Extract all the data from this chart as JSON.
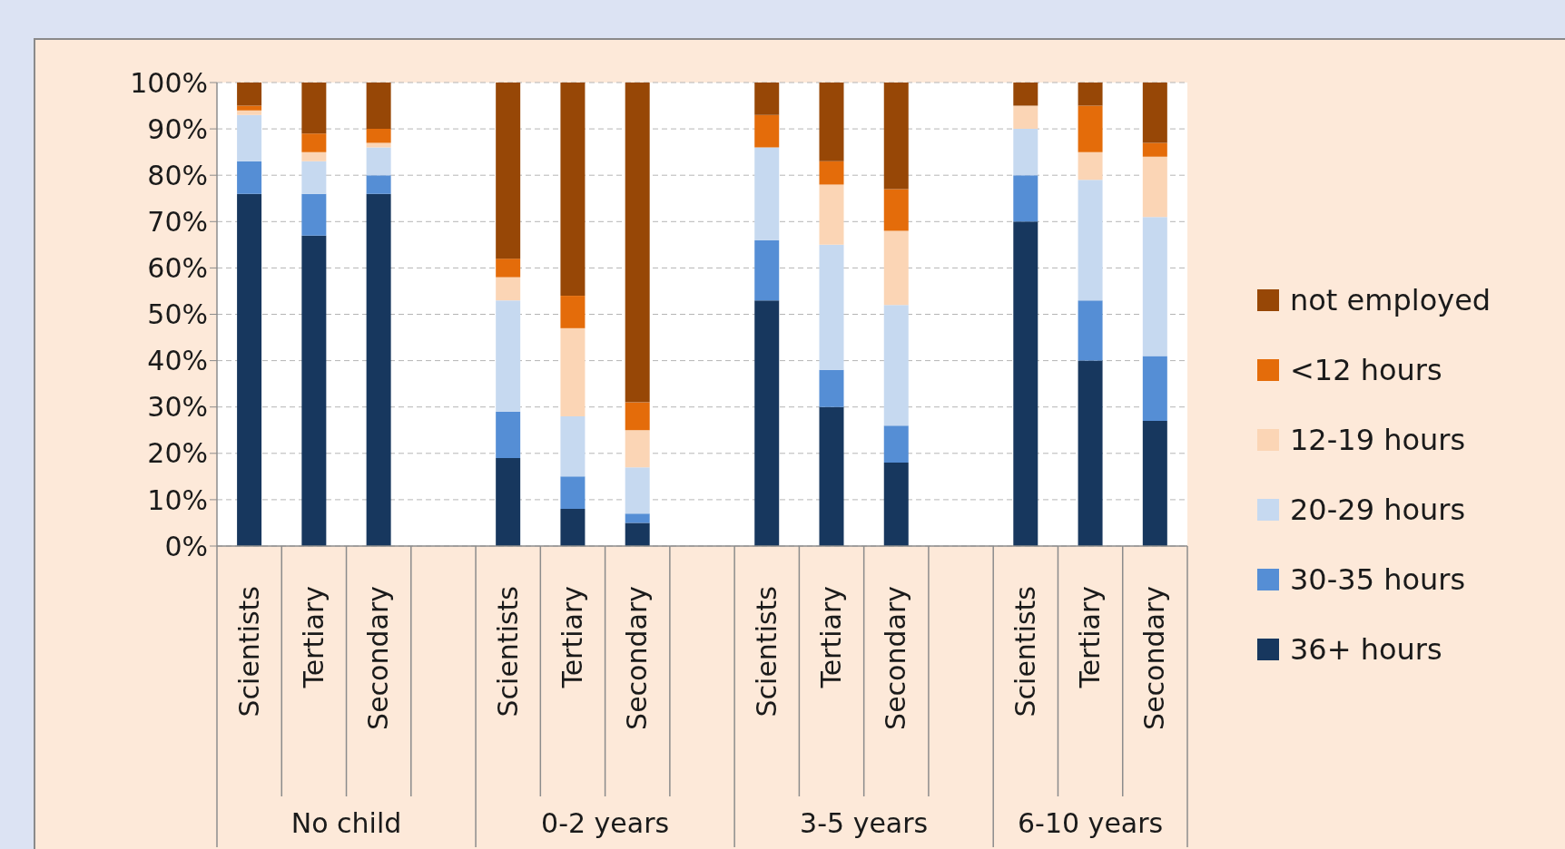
{
  "chart_data": {
    "type": "bar",
    "stacked": true,
    "categories": [
      "Scientists",
      "Tertiary",
      "Secondary",
      null,
      "Scientists",
      "Tertiary",
      "Secondary",
      null,
      "Scientists",
      "Tertiary",
      "Secondary",
      null,
      "Scientists",
      "Tertiary",
      "Secondary"
    ],
    "series": [
      {
        "name": "36+ hours",
        "color": "#17375e",
        "values": [
          76,
          67,
          76,
          null,
          19,
          8,
          5,
          null,
          53,
          30,
          18,
          null,
          70,
          40,
          27
        ]
      },
      {
        "name": "30-35 hours",
        "color": "#558ed5",
        "values": [
          7,
          9,
          4,
          null,
          10,
          7,
          2,
          null,
          13,
          8,
          8,
          null,
          10,
          13,
          14
        ]
      },
      {
        "name": "20-29 hours",
        "color": "#c6d9f0",
        "values": [
          10,
          7,
          6,
          null,
          24,
          13,
          10,
          null,
          20,
          27,
          26,
          null,
          10,
          26,
          30
        ]
      },
      {
        "name": "12-19 hours",
        "color": "#fbd5b5",
        "values": [
          1,
          2,
          1,
          null,
          5,
          19,
          8,
          null,
          0,
          13,
          16,
          null,
          5,
          6,
          13
        ]
      },
      {
        "name": "<12 hours",
        "color": "#e46c0a",
        "values": [
          1,
          4,
          3,
          null,
          4,
          7,
          6,
          null,
          7,
          5,
          9,
          null,
          0,
          10,
          3
        ]
      },
      {
        "name": "not employed",
        "color": "#974706",
        "values": [
          5,
          11,
          10,
          null,
          38,
          46,
          69,
          null,
          7,
          17,
          23,
          null,
          5,
          5,
          13
        ]
      }
    ],
    "ylim": [
      0,
      100
    ],
    "yticks": [
      {
        "value": 0,
        "label": "0%"
      },
      {
        "value": 10,
        "label": "10%"
      },
      {
        "value": 20,
        "label": "20%"
      },
      {
        "value": 30,
        "label": "30%"
      },
      {
        "value": 40,
        "label": "40%"
      },
      {
        "value": 50,
        "label": "50%"
      },
      {
        "value": 60,
        "label": "60%"
      },
      {
        "value": 70,
        "label": "70%"
      },
      {
        "value": 80,
        "label": "80%"
      },
      {
        "value": 90,
        "label": "90%"
      },
      {
        "value": 100,
        "label": "100%"
      }
    ],
    "grid": "y",
    "legend": "right",
    "annotations": [
      "No child",
      "0-2 years",
      "3-5 years",
      "6-10 years"
    ]
  }
}
